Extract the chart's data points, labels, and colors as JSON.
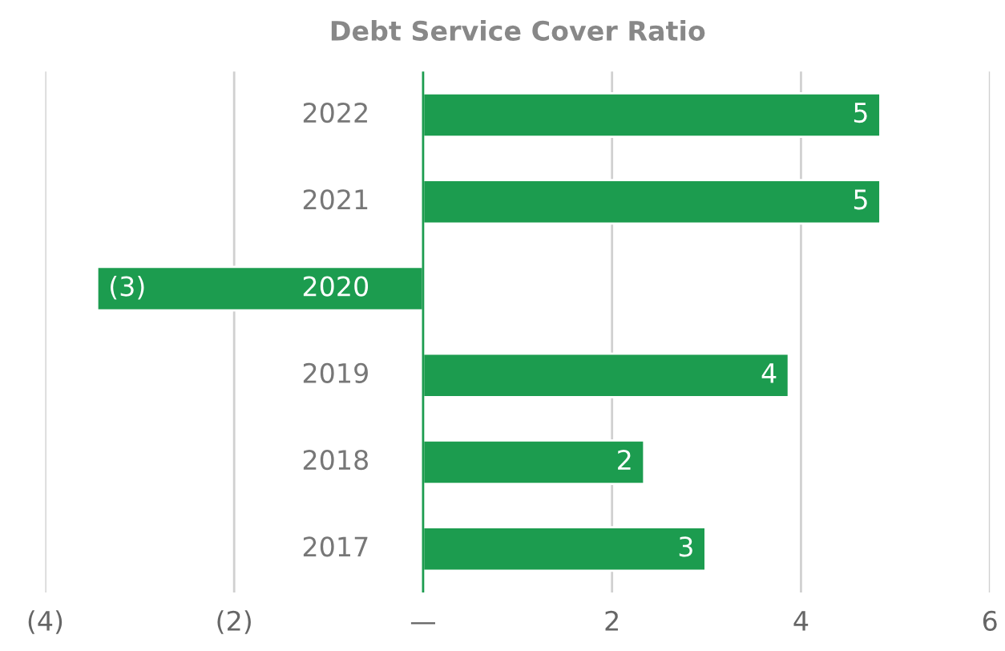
{
  "chart_data": {
    "type": "bar",
    "orientation": "horizontal",
    "title": "Debt Service Cover Ratio",
    "categories": [
      "2022",
      "2021",
      "2020",
      "2019",
      "2018",
      "2017"
    ],
    "values": [
      4.84,
      4.84,
      -3.45,
      3.87,
      2.34,
      2.99
    ],
    "value_labels": [
      "5",
      "5",
      "(3)",
      "4",
      "2",
      "3"
    ],
    "color": "#1c9c4f",
    "xlim": [
      -4,
      6
    ],
    "xticks": [
      {
        "value": -4,
        "label": "(4)"
      },
      {
        "value": -2,
        "label": "(2)"
      },
      {
        "value": 0,
        "label": "—"
      },
      2,
      4,
      6
    ],
    "grid": "x"
  }
}
